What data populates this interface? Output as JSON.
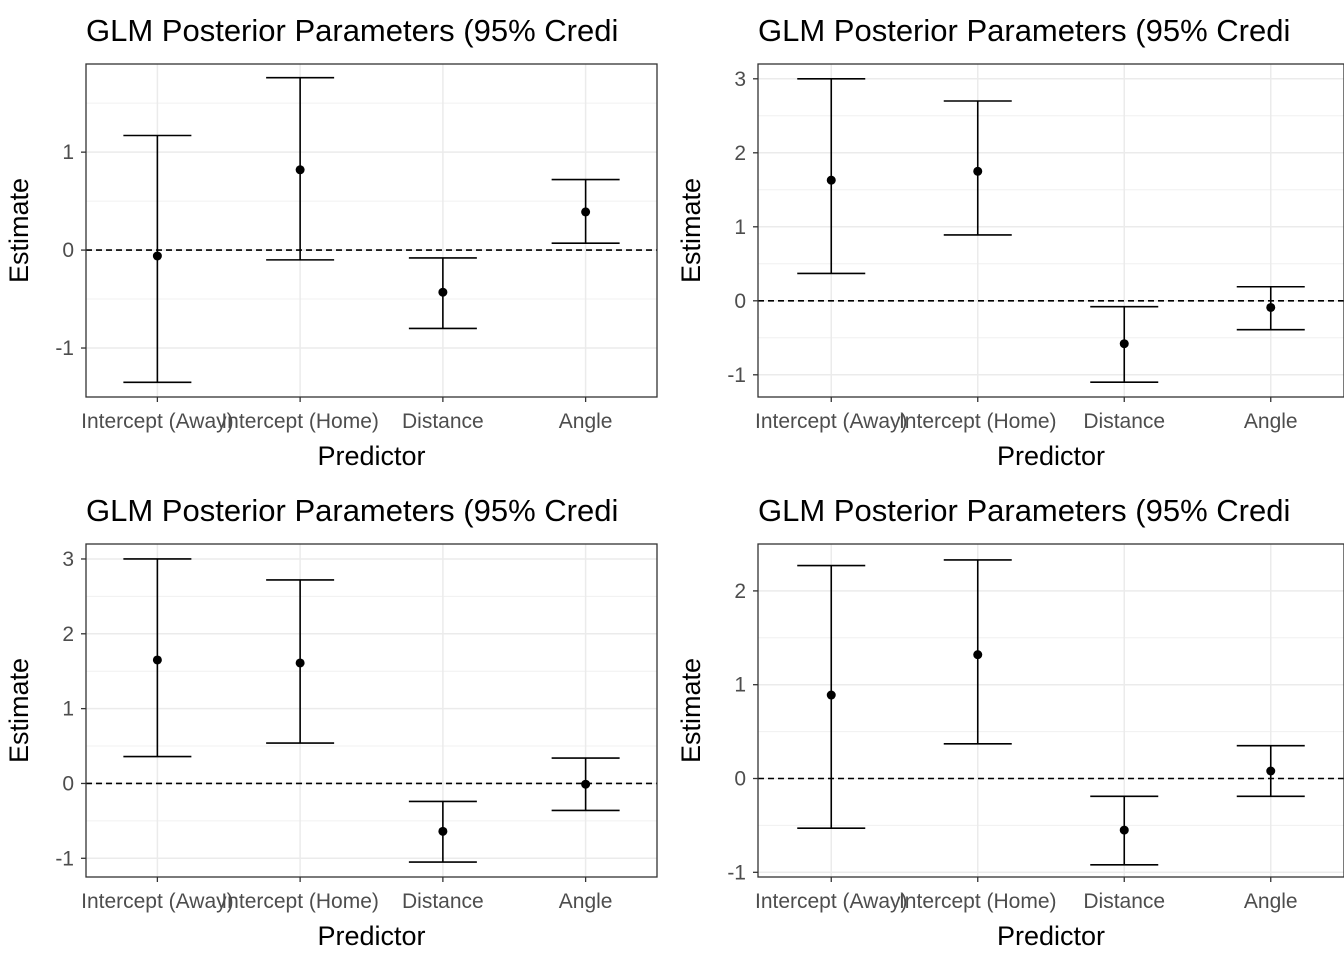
{
  "chart_data": [
    {
      "type": "errorbar",
      "title": "GLM Posterior Parameters (95% Credi",
      "xlabel": "Predictor",
      "ylabel": "Estimate",
      "categories": [
        "Intercept (Away)",
        "Intercept (Home)",
        "Distance",
        "Angle"
      ],
      "estimates": [
        -0.06,
        0.82,
        -0.43,
        0.39
      ],
      "lower": [
        -1.35,
        -0.1,
        -0.8,
        0.07
      ],
      "upper": [
        1.17,
        1.76,
        -0.08,
        0.72
      ],
      "ylim": [
        -1.5,
        1.9
      ],
      "yticks": [
        -1,
        0,
        1
      ],
      "reference_line": 0,
      "grid": true
    },
    {
      "type": "errorbar",
      "title": "GLM Posterior Parameters (95% Credi",
      "xlabel": "Predictor",
      "ylabel": "Estimate",
      "categories": [
        "Intercept (Away)",
        "Intercept (Home)",
        "Distance",
        "Angle"
      ],
      "estimates": [
        1.63,
        1.75,
        -0.58,
        -0.09
      ],
      "lower": [
        0.37,
        0.89,
        -1.1,
        -0.39
      ],
      "upper": [
        3.0,
        2.7,
        -0.08,
        0.19
      ],
      "ylim": [
        -1.3,
        3.2
      ],
      "yticks": [
        -1,
        0,
        1,
        2,
        3
      ],
      "reference_line": 0,
      "grid": true
    },
    {
      "type": "errorbar",
      "title": "GLM Posterior Parameters (95% Credi",
      "xlabel": "Predictor",
      "ylabel": "Estimate",
      "categories": [
        "Intercept (Away)",
        "Intercept (Home)",
        "Distance",
        "Angle"
      ],
      "estimates": [
        1.65,
        1.61,
        -0.64,
        -0.01
      ],
      "lower": [
        0.36,
        0.54,
        -1.05,
        -0.36
      ],
      "upper": [
        3.0,
        2.72,
        -0.24,
        0.34
      ],
      "ylim": [
        -1.25,
        3.2
      ],
      "yticks": [
        -1,
        0,
        1,
        2,
        3
      ],
      "reference_line": 0,
      "grid": true
    },
    {
      "type": "errorbar",
      "title": "GLM Posterior Parameters (95% Credi",
      "xlabel": "Predictor",
      "ylabel": "Estimate",
      "categories": [
        "Intercept (Away)",
        "Intercept (Home)",
        "Distance",
        "Angle"
      ],
      "estimates": [
        0.89,
        1.32,
        -0.55,
        0.08
      ],
      "lower": [
        -0.53,
        0.37,
        -0.92,
        -0.19
      ],
      "upper": [
        2.27,
        2.33,
        -0.19,
        0.35
      ],
      "ylim": [
        -1.05,
        2.5
      ],
      "yticks": [
        -1,
        0,
        1,
        2
      ],
      "reference_line": 0,
      "grid": true
    }
  ]
}
